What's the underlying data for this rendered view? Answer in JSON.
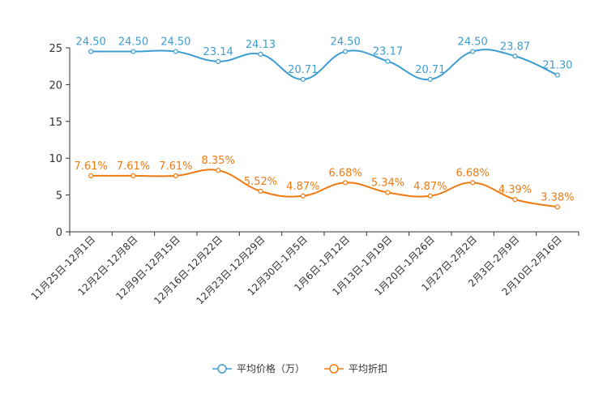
{
  "chart_data": {
    "type": "line",
    "categories": [
      "11月25日-12月1日",
      "12月2日-12月8日",
      "12月9日-12月15日",
      "12月16日-12月22日",
      "12月23日-12月29日",
      "12月30日-1月5日",
      "1月6日-1月12日",
      "1月13日-1月19日",
      "1月20日-1月26日",
      "1月27日-2月2日",
      "2月3日-2月9日",
      "2月10日-2月16日"
    ],
    "series": [
      {
        "name": "平均价格（万）",
        "color": "#3d9dd1",
        "values": [
          24.5,
          24.5,
          24.5,
          23.14,
          24.13,
          20.71,
          24.5,
          23.17,
          20.71,
          24.5,
          23.87,
          21.3
        ],
        "labels": [
          "24.50",
          "24.50",
          "24.50",
          "23.14",
          "24.13",
          "20.71",
          "24.50",
          "23.17",
          "20.71",
          "24.50",
          "23.87",
          "21.30"
        ]
      },
      {
        "name": "平均折扣",
        "color": "#f07a10",
        "values": [
          7.61,
          7.61,
          7.61,
          8.35,
          5.52,
          4.87,
          6.68,
          5.34,
          4.87,
          6.68,
          4.39,
          3.38
        ],
        "labels": [
          "7.61%",
          "7.61%",
          "7.61%",
          "8.35%",
          "5.52%",
          "4.87%",
          "6.68%",
          "5.34%",
          "4.87%",
          "6.68%",
          "4.39%",
          "3.38%"
        ]
      }
    ],
    "yticks": [
      "0",
      "5",
      "10",
      "15",
      "20",
      "25"
    ],
    "ylim": [
      0,
      25
    ],
    "title": "",
    "xlabel": "",
    "ylabel": "",
    "legend_position": "bottom-center",
    "grid": false,
    "smooth": true
  }
}
